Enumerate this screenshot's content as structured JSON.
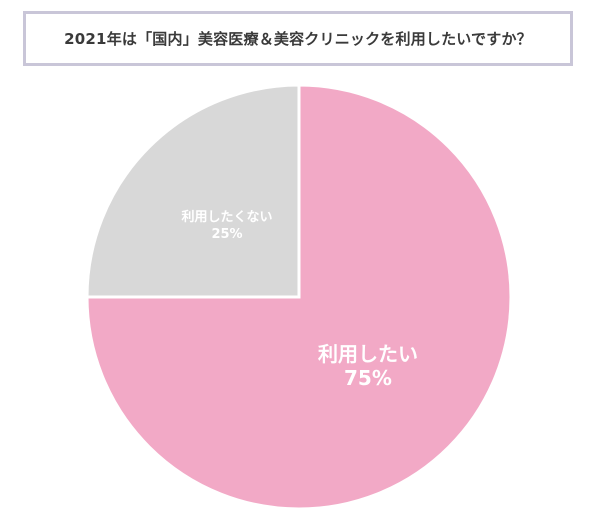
{
  "chart_data": {
    "type": "pie",
    "title": "2021年は「国内」美容医療＆美容クリニックを利用したいですか？",
    "slices": [
      {
        "label": "利用したい",
        "value": 75,
        "value_label": "75%",
        "color": "#f2a9c6"
      },
      {
        "label": "利用したくない",
        "value": 25,
        "value_label": "25%",
        "color": "#d8d8d8"
      }
    ],
    "start_angle": "12-o'clock",
    "direction": "clockwise",
    "legend": "none"
  }
}
